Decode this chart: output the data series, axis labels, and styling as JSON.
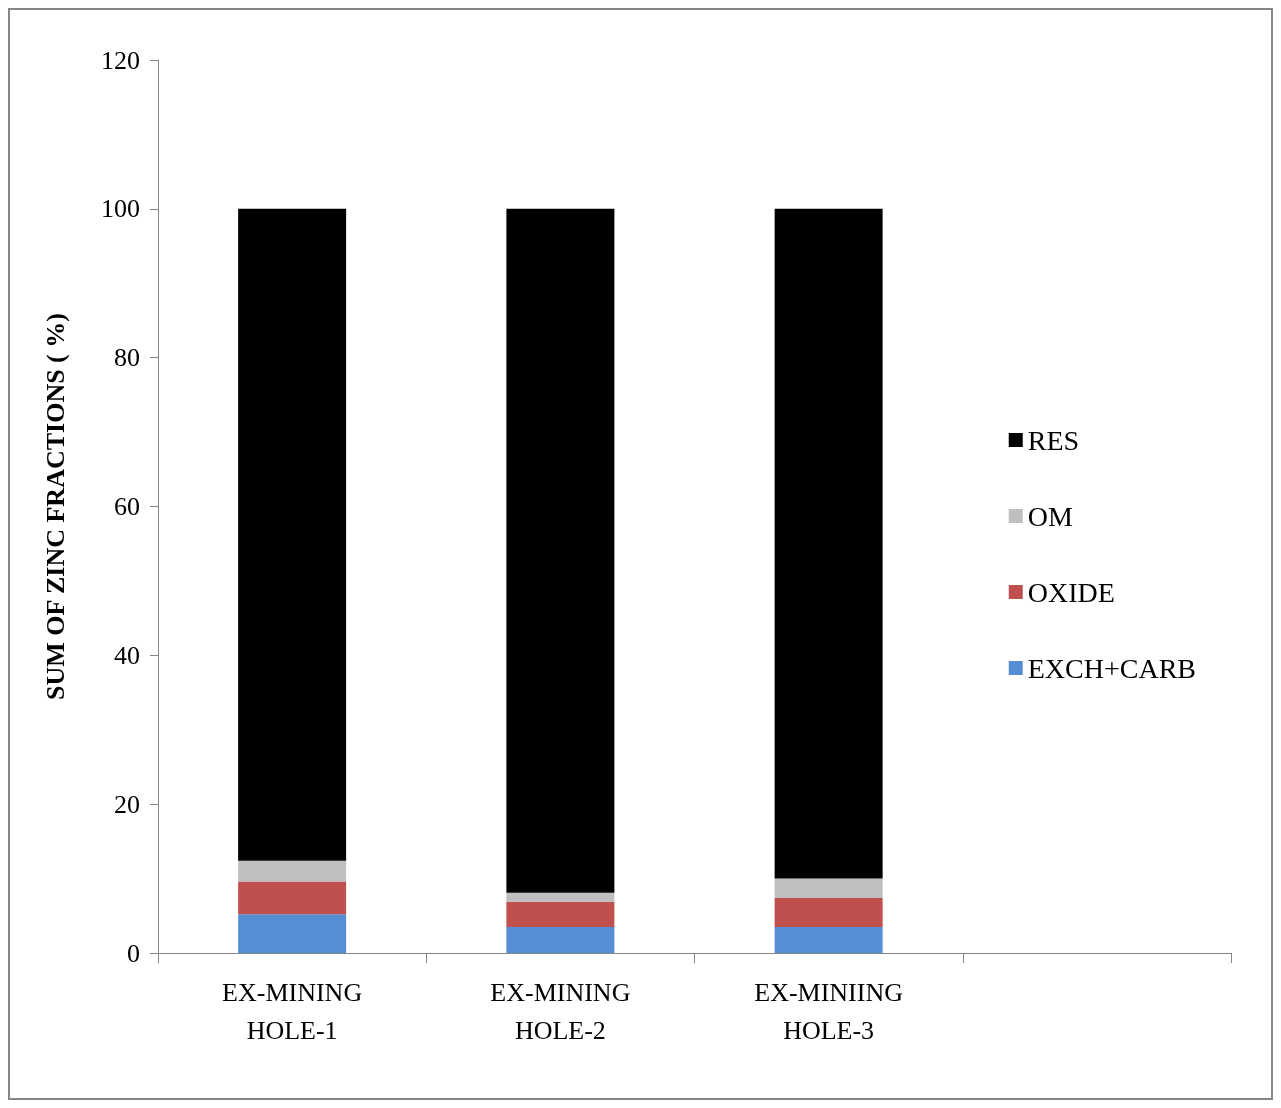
{
  "chart_data": {
    "type": "bar",
    "stacked": true,
    "ylabel": "SUM OF ZINC FRACTIONS ( %)",
    "categories": [
      "EX-MINING\nHOLE-1",
      "EX-MINING\nHOLE-2",
      "EX-MINIING\nHOLE-3",
      null
    ],
    "series": [
      {
        "name": "EXCH+CARB",
        "color": "#558ed5",
        "values": [
          5.2,
          3.5,
          3.5,
          null
        ]
      },
      {
        "name": "OXIDE",
        "color": "#c0504d",
        "values": [
          4.4,
          3.4,
          3.9,
          null
        ]
      },
      {
        "name": "OM",
        "color": "#bfbfbf",
        "values": [
          2.8,
          1.2,
          2.6,
          null
        ]
      },
      {
        "name": "RES",
        "color": "#000000",
        "values": [
          87.6,
          91.9,
          90.0,
          null
        ]
      }
    ],
    "ylim": [
      0,
      120
    ],
    "yticks": [
      0,
      20,
      40,
      60,
      80,
      100,
      120
    ],
    "grid": false,
    "legend": "right"
  }
}
